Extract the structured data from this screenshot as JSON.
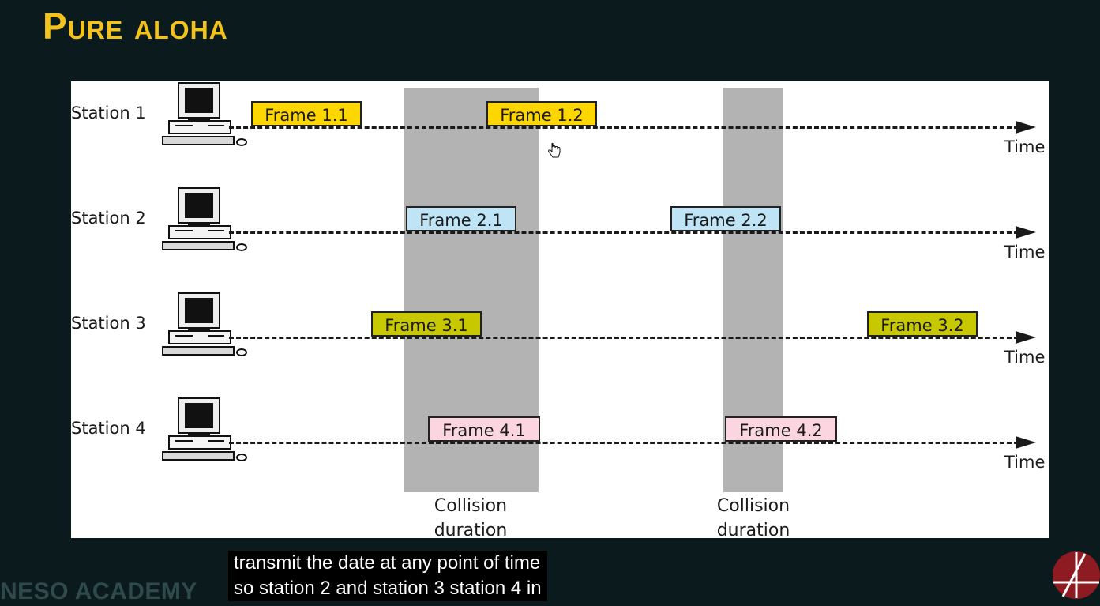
{
  "title": "Pure aloha",
  "stations": [
    {
      "label": "Station 1",
      "time_label": "Time"
    },
    {
      "label": "Station 2",
      "time_label": "Time"
    },
    {
      "label": "Station 3",
      "time_label": "Time"
    },
    {
      "label": "Station 4",
      "time_label": "Time"
    }
  ],
  "frames": {
    "f11": "Frame 1.1",
    "f12": "Frame 1.2",
    "f21": "Frame 2.1",
    "f22": "Frame 2.2",
    "f31": "Frame 3.1",
    "f32": "Frame 3.2",
    "f41": "Frame 4.1",
    "f42": "Frame 4.2"
  },
  "collisions": [
    {
      "label_line1": "Collision",
      "label_line2": "duration"
    },
    {
      "label_line1": "Collision",
      "label_line2": "duration"
    }
  ],
  "caption": {
    "line1": "transmit the date at any point of time",
    "line2": "so station 2 and station 3 station 4 in"
  },
  "brand": "NESO ACADEMY",
  "colors": {
    "station1_frame": "#fdd600",
    "station2_frame": "#bfe4f5",
    "station3_frame": "#c8c800",
    "station4_frame": "#fbd6e0",
    "collision": "#b3b3b3",
    "title": "#f3c21c"
  }
}
